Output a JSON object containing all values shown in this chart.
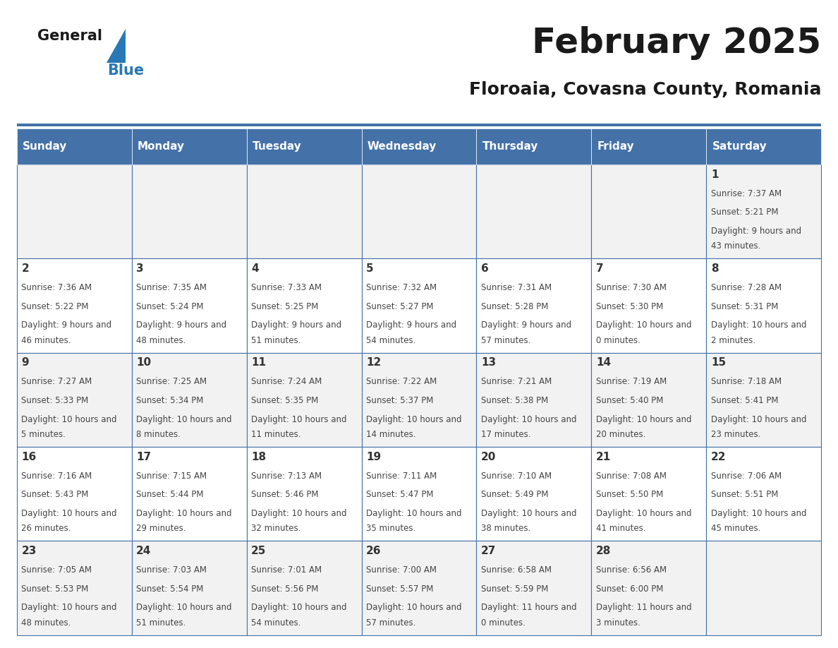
{
  "title": "February 2025",
  "subtitle": "Floroaia, Covasna County, Romania",
  "header_color": "#4472a8",
  "header_text_color": "#ffffff",
  "cell_bg_color": "#f2f2f2",
  "cell_alt_bg_color": "#ffffff",
  "border_color": "#4472a8",
  "title_color": "#1a1a1a",
  "subtitle_color": "#1a1a1a",
  "days_of_week": [
    "Sunday",
    "Monday",
    "Tuesday",
    "Wednesday",
    "Thursday",
    "Friday",
    "Saturday"
  ],
  "weeks": [
    [
      {
        "day": "",
        "sunrise": "",
        "sunset": "",
        "daylight": ""
      },
      {
        "day": "",
        "sunrise": "",
        "sunset": "",
        "daylight": ""
      },
      {
        "day": "",
        "sunrise": "",
        "sunset": "",
        "daylight": ""
      },
      {
        "day": "",
        "sunrise": "",
        "sunset": "",
        "daylight": ""
      },
      {
        "day": "",
        "sunrise": "",
        "sunset": "",
        "daylight": ""
      },
      {
        "day": "",
        "sunrise": "",
        "sunset": "",
        "daylight": ""
      },
      {
        "day": "1",
        "sunrise": "7:37 AM",
        "sunset": "5:21 PM",
        "daylight": "9 hours and 43 minutes."
      }
    ],
    [
      {
        "day": "2",
        "sunrise": "7:36 AM",
        "sunset": "5:22 PM",
        "daylight": "9 hours and 46 minutes."
      },
      {
        "day": "3",
        "sunrise": "7:35 AM",
        "sunset": "5:24 PM",
        "daylight": "9 hours and 48 minutes."
      },
      {
        "day": "4",
        "sunrise": "7:33 AM",
        "sunset": "5:25 PM",
        "daylight": "9 hours and 51 minutes."
      },
      {
        "day": "5",
        "sunrise": "7:32 AM",
        "sunset": "5:27 PM",
        "daylight": "9 hours and 54 minutes."
      },
      {
        "day": "6",
        "sunrise": "7:31 AM",
        "sunset": "5:28 PM",
        "daylight": "9 hours and 57 minutes."
      },
      {
        "day": "7",
        "sunrise": "7:30 AM",
        "sunset": "5:30 PM",
        "daylight": "10 hours and 0 minutes."
      },
      {
        "day": "8",
        "sunrise": "7:28 AM",
        "sunset": "5:31 PM",
        "daylight": "10 hours and 2 minutes."
      }
    ],
    [
      {
        "day": "9",
        "sunrise": "7:27 AM",
        "sunset": "5:33 PM",
        "daylight": "10 hours and 5 minutes."
      },
      {
        "day": "10",
        "sunrise": "7:25 AM",
        "sunset": "5:34 PM",
        "daylight": "10 hours and 8 minutes."
      },
      {
        "day": "11",
        "sunrise": "7:24 AM",
        "sunset": "5:35 PM",
        "daylight": "10 hours and 11 minutes."
      },
      {
        "day": "12",
        "sunrise": "7:22 AM",
        "sunset": "5:37 PM",
        "daylight": "10 hours and 14 minutes."
      },
      {
        "day": "13",
        "sunrise": "7:21 AM",
        "sunset": "5:38 PM",
        "daylight": "10 hours and 17 minutes."
      },
      {
        "day": "14",
        "sunrise": "7:19 AM",
        "sunset": "5:40 PM",
        "daylight": "10 hours and 20 minutes."
      },
      {
        "day": "15",
        "sunrise": "7:18 AM",
        "sunset": "5:41 PM",
        "daylight": "10 hours and 23 minutes."
      }
    ],
    [
      {
        "day": "16",
        "sunrise": "7:16 AM",
        "sunset": "5:43 PM",
        "daylight": "10 hours and 26 minutes."
      },
      {
        "day": "17",
        "sunrise": "7:15 AM",
        "sunset": "5:44 PM",
        "daylight": "10 hours and 29 minutes."
      },
      {
        "day": "18",
        "sunrise": "7:13 AM",
        "sunset": "5:46 PM",
        "daylight": "10 hours and 32 minutes."
      },
      {
        "day": "19",
        "sunrise": "7:11 AM",
        "sunset": "5:47 PM",
        "daylight": "10 hours and 35 minutes."
      },
      {
        "day": "20",
        "sunrise": "7:10 AM",
        "sunset": "5:49 PM",
        "daylight": "10 hours and 38 minutes."
      },
      {
        "day": "21",
        "sunrise": "7:08 AM",
        "sunset": "5:50 PM",
        "daylight": "10 hours and 41 minutes."
      },
      {
        "day": "22",
        "sunrise": "7:06 AM",
        "sunset": "5:51 PM",
        "daylight": "10 hours and 45 minutes."
      }
    ],
    [
      {
        "day": "23",
        "sunrise": "7:05 AM",
        "sunset": "5:53 PM",
        "daylight": "10 hours and 48 minutes."
      },
      {
        "day": "24",
        "sunrise": "7:03 AM",
        "sunset": "5:54 PM",
        "daylight": "10 hours and 51 minutes."
      },
      {
        "day": "25",
        "sunrise": "7:01 AM",
        "sunset": "5:56 PM",
        "daylight": "10 hours and 54 minutes."
      },
      {
        "day": "26",
        "sunrise": "7:00 AM",
        "sunset": "5:57 PM",
        "daylight": "10 hours and 57 minutes."
      },
      {
        "day": "27",
        "sunrise": "6:58 AM",
        "sunset": "5:59 PM",
        "daylight": "11 hours and 0 minutes."
      },
      {
        "day": "28",
        "sunrise": "6:56 AM",
        "sunset": "6:00 PM",
        "daylight": "11 hours and 3 minutes."
      },
      {
        "day": "",
        "sunrise": "",
        "sunset": "",
        "daylight": ""
      }
    ]
  ],
  "background_color": "#ffffff",
  "logo_general_color": "#1a1a1a",
  "logo_blue_color": "#2878b5",
  "logo_triangle_color": "#2878b5"
}
